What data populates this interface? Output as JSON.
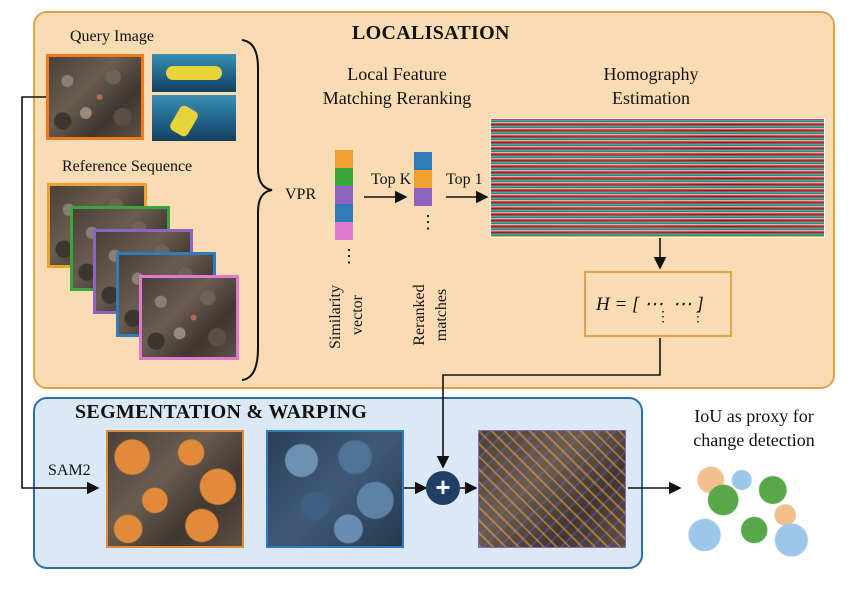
{
  "localisation": {
    "title": "LOCALISATION",
    "query_label": "Query Image",
    "reference_label": "Reference Sequence",
    "vpr_label": "VPR",
    "local_feature_title_line1": "Local Feature",
    "local_feature_title_line2": "Matching Reranking",
    "homography_title_line1": "Homography",
    "homography_title_line2": "Estimation",
    "topk_label": "Top K",
    "top1_label": "Top 1",
    "similarity_label_line1": "Similarity",
    "similarity_label_line2": "vector",
    "reranked_label_line1": "Reranked",
    "reranked_label_line2": "matches",
    "ellipsis": "⋮",
    "matrix_text": "H = [ ⋯  ⋯ ]",
    "matrix_dots_row2": "⋮      ⋮"
  },
  "segmentation": {
    "title": "SEGMENTATION & WARPING",
    "sam_label": "SAM2",
    "plus_symbol": "+"
  },
  "output": {
    "line1": "IoU as proxy for",
    "line2": "change detection"
  },
  "colors": {
    "orange": "#f0a030",
    "green": "#3aa53a",
    "purple": "#8e64c0",
    "blue": "#2f7cb8",
    "pink": "#e07ad0",
    "loc_bg": "#f9dcb4",
    "seg_bg": "#dbe9f6",
    "circle": "#1f3f66"
  },
  "similarity_vector": [
    "orange",
    "green",
    "purple",
    "blue",
    "pink"
  ],
  "reranked_vector": [
    "blue",
    "orange",
    "purple"
  ]
}
